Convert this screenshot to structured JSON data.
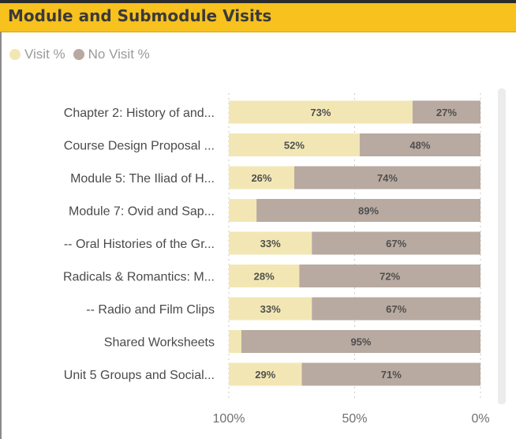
{
  "header": {
    "title": "Module and Submodule Visits"
  },
  "legend": {
    "items": [
      {
        "label": "Visit %",
        "color": "#f2e7b4",
        "icon": "circle-icon"
      },
      {
        "label": "No Visit %",
        "color": "#b8aaa0",
        "icon": "circle-icon"
      }
    ]
  },
  "chart_data": {
    "type": "bar",
    "orientation": "horizontal",
    "stacked": "100%",
    "title": "Module and Submodule Visits",
    "x_axis_reversed": true,
    "xlim": [
      0,
      100
    ],
    "x_ticks": [
      "100%",
      "50%",
      "0%"
    ],
    "grid": true,
    "legend_position": "top-left",
    "categories": [
      "Chapter 2: History of and...",
      "Course Design Proposal ...",
      "Module 5: The Iliad of H...",
      "Module 7: Ovid and Sap...",
      "-- Oral Histories of the Gr...",
      "Radicals & Romantics: M...",
      "-- Radio and Film Clips",
      "Shared Worksheets",
      "Unit 5 Groups and Social..."
    ],
    "series": [
      {
        "name": "Visit %",
        "color": "#f2e7b4",
        "values": [
          73,
          52,
          26,
          11,
          33,
          28,
          33,
          5,
          29
        ],
        "labels": [
          "73%",
          "52%",
          "26%",
          "",
          "33%",
          "28%",
          "33%",
          "",
          "29%"
        ]
      },
      {
        "name": "No Visit %",
        "color": "#b8aaa0",
        "values": [
          27,
          48,
          74,
          89,
          67,
          72,
          67,
          95,
          71
        ],
        "labels": [
          "27%",
          "48%",
          "74%",
          "89%",
          "67%",
          "72%",
          "67%",
          "95%",
          "71%"
        ]
      }
    ]
  }
}
